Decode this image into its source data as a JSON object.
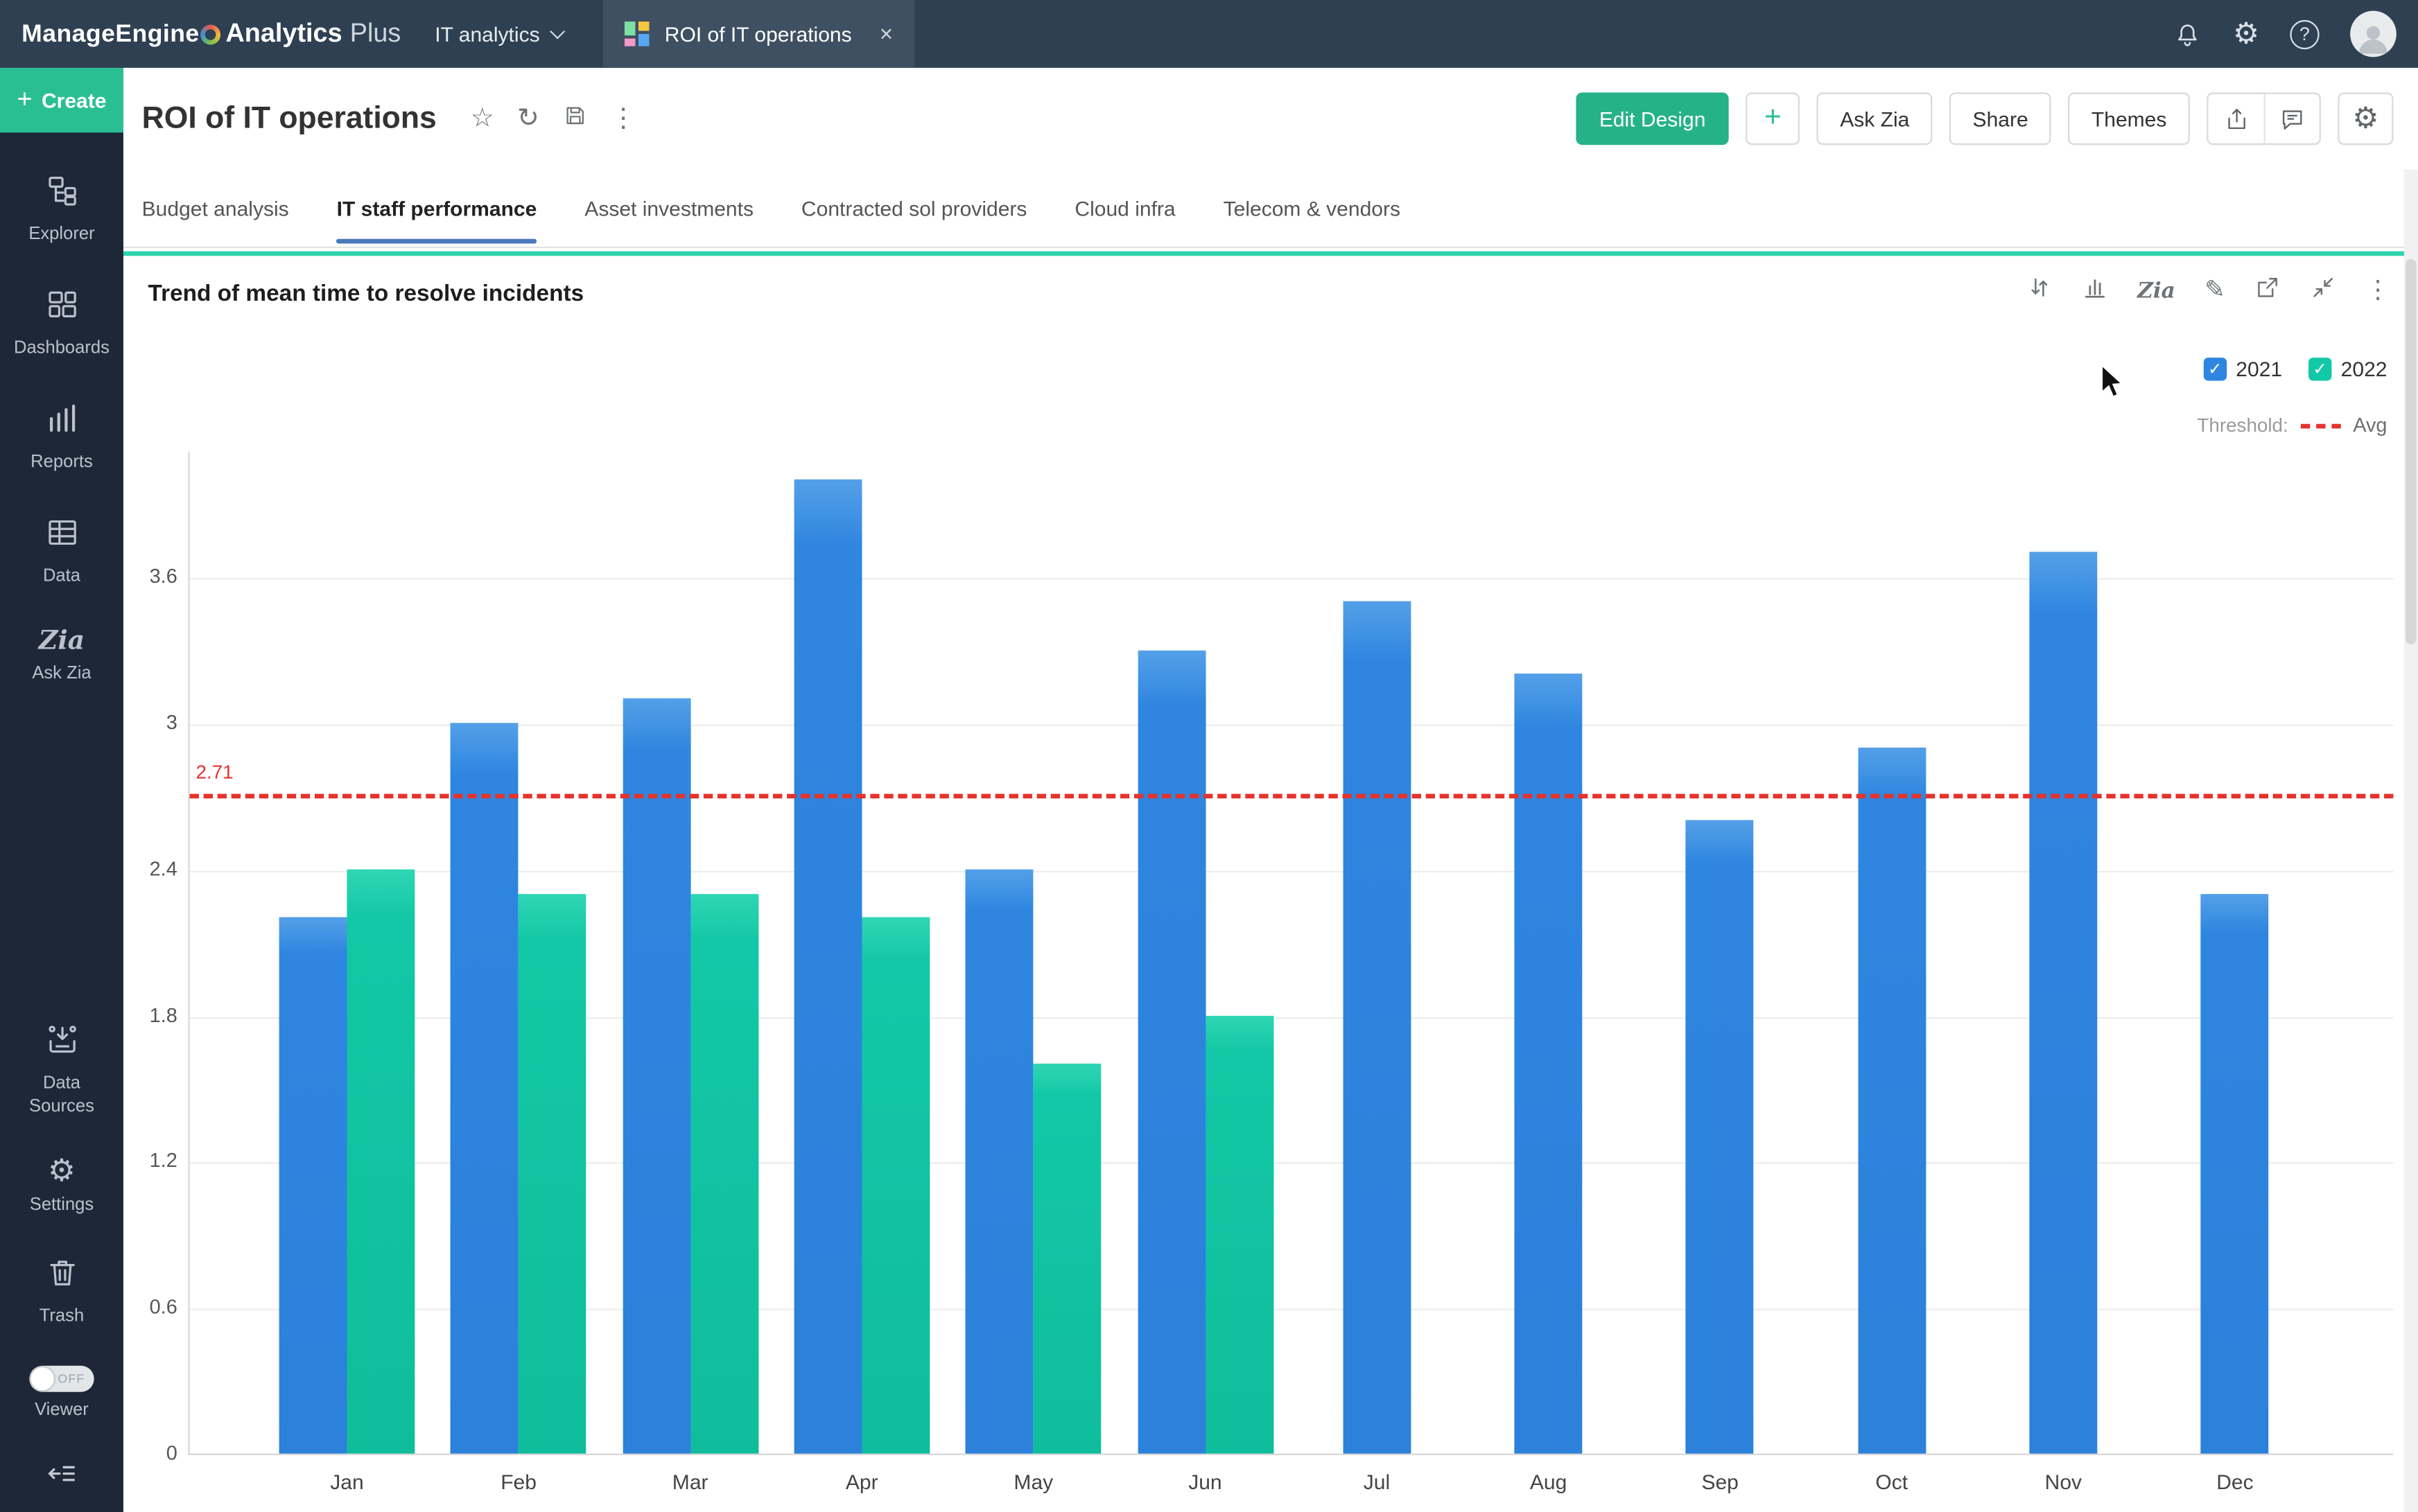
{
  "topbar": {
    "brand_manage": "ManageEngine",
    "brand_analytics": "Analytics",
    "brand_plus": "Plus",
    "workspace": "IT analytics",
    "open_tab": "ROI of IT operations"
  },
  "sidebar": {
    "create_plus": "+",
    "create": "Create",
    "items": [
      {
        "label": "Explorer",
        "icon": "explorer-icon"
      },
      {
        "label": "Dashboards",
        "icon": "dashboards-icon"
      },
      {
        "label": "Reports",
        "icon": "reports-icon"
      },
      {
        "label": "Data",
        "icon": "data-icon"
      },
      {
        "label": "Ask Zia",
        "icon": "zia-icon"
      }
    ],
    "bottom_items": [
      {
        "label": "Data Sources",
        "icon": "data-sources-icon"
      },
      {
        "label": "Settings",
        "icon": "settings-icon"
      },
      {
        "label": "Trash",
        "icon": "trash-icon"
      }
    ],
    "viewer_label": "Viewer",
    "viewer_state": "OFF"
  },
  "header": {
    "title": "ROI of IT operations",
    "edit_design": "Edit Design",
    "plus": "+",
    "ask_zia": "Ask Zia",
    "share": "Share",
    "themes": "Themes"
  },
  "tabs": [
    {
      "label": "Budget analysis",
      "active": false
    },
    {
      "label": "IT staff performance",
      "active": true
    },
    {
      "label": "Asset investments",
      "active": false
    },
    {
      "label": "Contracted sol providers",
      "active": false
    },
    {
      "label": "Cloud infra",
      "active": false
    },
    {
      "label": "Telecom & vendors",
      "active": false
    }
  ],
  "chart": {
    "title": "Trend of mean time to resolve incidents",
    "threshold_label": "Threshold:"
  },
  "icons": {
    "star": "☆",
    "refresh": "↻",
    "kebab": "⋮",
    "gear": "⚙",
    "pencil": "✎",
    "help": "?",
    "close": "×",
    "zia_logo": "Zia"
  },
  "colors": {
    "blue_2021": "#2e86e0",
    "teal_2022": "#13c8a6",
    "threshold_red": "#e5332c",
    "brand_green": "#2abf93",
    "panel_accent": "#2dd2ad"
  },
  "chart_data": {
    "type": "bar",
    "title": "Trend of mean time to resolve incidents",
    "categories": [
      "Jan",
      "Feb",
      "Mar",
      "Apr",
      "May",
      "Jun",
      "Jul",
      "Aug",
      "Sep",
      "Oct",
      "Nov",
      "Dec"
    ],
    "series": [
      {
        "name": "2021",
        "color": "#2e86e0",
        "values": [
          2.2,
          3,
          3.1,
          4,
          2.4,
          3.3,
          3.5,
          3.2,
          2.6,
          2.9,
          3.7,
          2.3
        ]
      },
      {
        "name": "2022",
        "color": "#13c8a6",
        "values": [
          2.4,
          2.3,
          2.3,
          2.2,
          1.6,
          1.8,
          null,
          null,
          null,
          null,
          null,
          null
        ]
      }
    ],
    "threshold": {
      "label": "Avg",
      "value": 2.71,
      "color": "#e5332c"
    },
    "yticks": [
      0,
      0.6,
      1.2,
      1.8,
      2.4,
      3,
      3.6
    ],
    "ylim": [
      0,
      4.12
    ],
    "xlabel": "",
    "ylabel": "",
    "grid": true,
    "legend_position": "top-right"
  }
}
